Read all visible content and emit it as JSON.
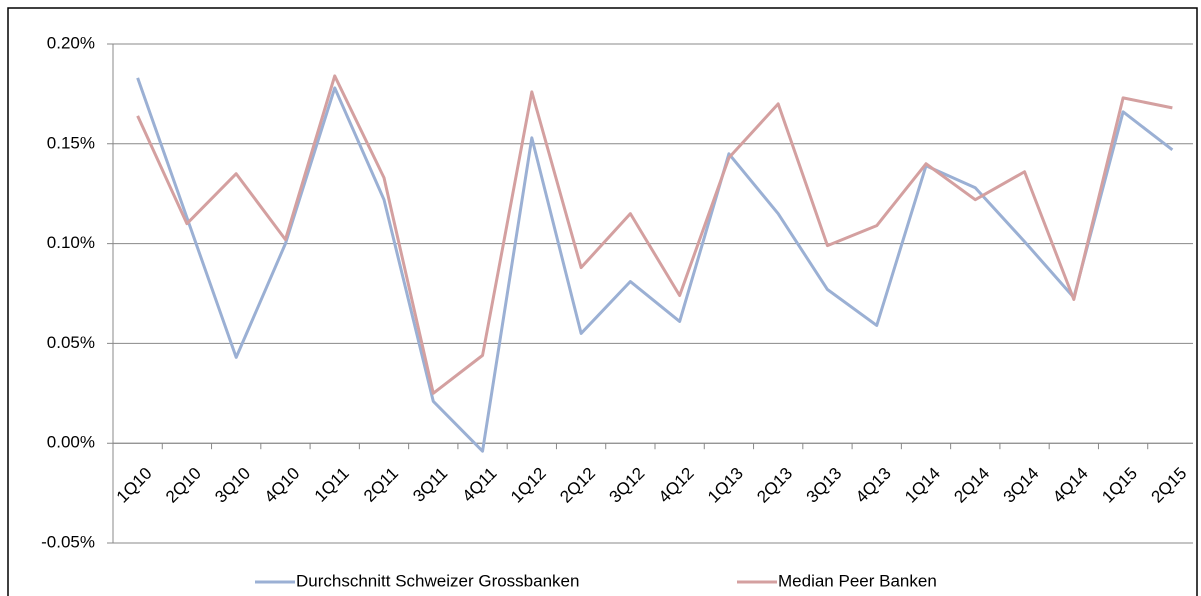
{
  "chart_data": {
    "type": "line",
    "categories": [
      "1Q10",
      "2Q10",
      "3Q10",
      "4Q10",
      "1Q11",
      "2Q11",
      "3Q11",
      "4Q11",
      "1Q12",
      "2Q12",
      "3Q12",
      "4Q12",
      "1Q13",
      "2Q13",
      "3Q13",
      "4Q13",
      "1Q14",
      "2Q14",
      "3Q14",
      "4Q14",
      "1Q15",
      "2Q15"
    ],
    "series": [
      {
        "name": "Durchschnitt Schweizer Grossbanken",
        "color": "#9bb0d4",
        "values": [
          0.183,
          0.113,
          0.043,
          0.1,
          0.178,
          0.122,
          0.021,
          -0.004,
          0.153,
          0.055,
          0.081,
          0.061,
          0.145,
          0.115,
          0.077,
          0.059,
          0.139,
          0.128,
          0.101,
          0.073,
          0.166,
          0.147
        ]
      },
      {
        "name": "Median Peer Banken",
        "color": "#d4a0a0",
        "values": [
          0.164,
          0.11,
          0.135,
          0.102,
          0.184,
          0.133,
          0.025,
          0.044,
          0.176,
          0.088,
          0.115,
          0.074,
          0.143,
          0.17,
          0.099,
          0.109,
          0.14,
          0.122,
          0.136,
          0.072,
          0.173,
          0.168
        ]
      }
    ],
    "ylim": [
      -0.05,
      0.2
    ],
    "yticks": [
      {
        "value": -0.05,
        "label": "-0.05%"
      },
      {
        "value": 0,
        "label": "0.00%"
      },
      {
        "value": 0.05,
        "label": "0.05%"
      },
      {
        "value": 0.1,
        "label": "0.10%"
      },
      {
        "value": 0.15,
        "label": "0.15%"
      },
      {
        "value": 0.2,
        "label": "0.20%"
      }
    ],
    "grid": true,
    "legend": "bottom"
  }
}
